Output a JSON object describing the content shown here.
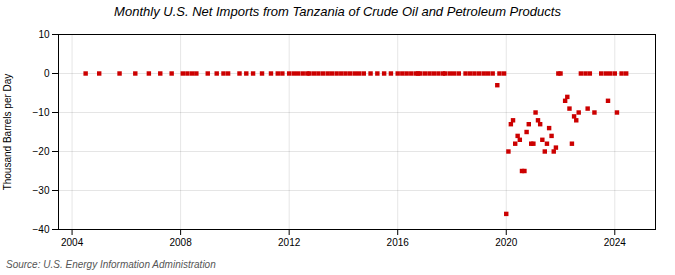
{
  "chart_data": {
    "type": "scatter",
    "title": "Monthly U.S. Net Imports from Tanzania of Crude Oil and Petroleum Products",
    "ylabel": "Thousand Barrels per Day",
    "source": "Source: U.S. Energy Information Administration",
    "color": "#cc0000",
    "marker": "square",
    "grid": true,
    "xlim": [
      2003.5,
      2025.5
    ],
    "ylim": [
      -40,
      10
    ],
    "xticks": [
      2004,
      2008,
      2012,
      2016,
      2020,
      2024
    ],
    "yticks": [
      -40,
      -30,
      -20,
      -10,
      0,
      10
    ],
    "x": [
      2004.5,
      2005.0,
      2005.75,
      2006.33,
      2006.83,
      2007.25,
      2007.67,
      2008.08,
      2008.25,
      2008.42,
      2008.58,
      2009.0,
      2009.33,
      2009.58,
      2009.75,
      2010.17,
      2010.42,
      2010.67,
      2011.0,
      2011.33,
      2011.58,
      2011.75,
      2012.0,
      2012.17,
      2012.33,
      2012.5,
      2012.67,
      2012.75,
      2012.92,
      2013.08,
      2013.25,
      2013.42,
      2013.58,
      2013.75,
      2013.92,
      2014.08,
      2014.25,
      2014.42,
      2014.58,
      2014.75,
      2015.0,
      2015.25,
      2015.5,
      2015.75,
      2016.0,
      2016.17,
      2016.33,
      2016.5,
      2016.67,
      2016.75,
      2016.83,
      2017.0,
      2017.17,
      2017.33,
      2017.5,
      2017.67,
      2017.75,
      2017.92,
      2018.08,
      2018.25,
      2018.5,
      2018.67,
      2018.83,
      2019.0,
      2019.17,
      2019.33,
      2019.5,
      2019.67,
      2019.75,
      2019.92,
      2020.0,
      2020.08,
      2020.17,
      2020.25,
      2020.33,
      2020.42,
      2020.5,
      2020.58,
      2020.67,
      2020.75,
      2020.83,
      2020.92,
      2021.0,
      2021.08,
      2021.17,
      2021.25,
      2021.33,
      2021.42,
      2021.5,
      2021.58,
      2021.67,
      2021.75,
      2021.83,
      2021.92,
      2022.0,
      2022.17,
      2022.25,
      2022.33,
      2022.42,
      2022.5,
      2022.58,
      2022.67,
      2022.75,
      2022.92,
      2023.0,
      2023.08,
      2023.25,
      2023.5,
      2023.67,
      2023.75,
      2023.83,
      2024.0,
      2024.08,
      2024.25,
      2024.42
    ],
    "values": [
      0,
      0,
      0,
      0,
      0,
      0,
      0,
      0,
      0,
      0,
      0,
      0,
      0,
      0,
      0,
      0,
      0,
      0,
      0,
      0,
      0,
      0,
      0,
      0,
      0,
      0,
      0,
      0,
      0,
      0,
      0,
      0,
      0,
      0,
      0,
      0,
      0,
      0,
      0,
      0,
      0,
      0,
      0,
      0,
      0,
      0,
      0,
      0,
      0,
      0,
      0,
      0,
      0,
      0,
      0,
      0,
      0,
      0,
      0,
      0,
      0,
      0,
      0,
      0,
      0,
      0,
      0,
      -3,
      0,
      0,
      -36,
      -20,
      -13,
      -12,
      -18,
      -16,
      -17,
      -25,
      -25,
      -15,
      -13,
      -18,
      -18,
      -10,
      -12,
      -13,
      -17,
      -20,
      -18,
      -14,
      -16,
      -20,
      -19,
      0,
      0,
      -7,
      -6,
      -9,
      -18,
      -11,
      -12,
      -10,
      0,
      0,
      -9,
      0,
      -10,
      0,
      0,
      -7,
      0,
      0,
      -10,
      0,
      0
    ]
  }
}
